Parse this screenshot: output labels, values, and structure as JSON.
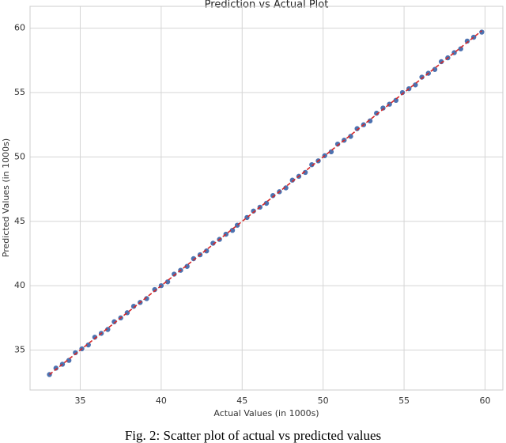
{
  "chart_data": {
    "type": "scatter",
    "title": "Prediction vs Actual Plot",
    "xlabel": "Actual Values (in 1000s)",
    "ylabel": "Predicted Values (in 1000s)",
    "caption": "Fig. 2: Scatter plot of actual vs predicted values",
    "xlim": [
      31.9,
      61.1
    ],
    "ylim": [
      31.9,
      61.7
    ],
    "xticks": [
      35,
      40,
      45,
      50,
      55,
      60
    ],
    "yticks": [
      35,
      40,
      45,
      50,
      55,
      60
    ],
    "grid": true,
    "series": [
      {
        "color": "#4c72b0",
        "x": [
          33.1,
          33.5,
          33.9,
          34.3,
          34.7,
          35.1,
          35.5,
          35.9,
          36.3,
          36.7,
          37.1,
          37.5,
          37.9,
          38.3,
          38.7,
          39.1,
          39.6,
          40.0,
          40.4,
          40.8,
          41.2,
          41.6,
          42.0,
          42.4,
          42.8,
          43.2,
          43.6,
          44.0,
          44.4,
          44.7,
          45.3,
          45.7,
          46.1,
          46.5,
          46.9,
          47.3,
          47.7,
          48.1,
          48.5,
          48.9,
          49.3,
          49.7,
          50.1,
          50.5,
          50.9,
          51.3,
          51.7,
          52.1,
          52.5,
          52.9,
          53.3,
          53.7,
          54.1,
          54.5,
          54.9,
          55.3,
          55.7,
          56.1,
          56.5,
          56.9,
          57.3,
          57.7,
          58.1,
          58.5,
          58.9,
          59.3,
          59.8
        ],
        "values": [
          33.1,
          33.6,
          33.9,
          34.2,
          34.8,
          35.1,
          35.4,
          36.0,
          36.3,
          36.6,
          37.2,
          37.5,
          37.9,
          38.4,
          38.7,
          39.0,
          39.7,
          40.0,
          40.3,
          40.9,
          41.2,
          41.5,
          42.1,
          42.4,
          42.7,
          43.3,
          43.6,
          44.0,
          44.3,
          44.7,
          45.3,
          45.8,
          46.1,
          46.4,
          47.0,
          47.3,
          47.6,
          48.2,
          48.5,
          48.8,
          49.4,
          49.7,
          50.1,
          50.4,
          51.0,
          51.3,
          51.6,
          52.2,
          52.5,
          52.8,
          53.4,
          53.8,
          54.1,
          54.4,
          55.0,
          55.3,
          55.6,
          56.2,
          56.5,
          56.8,
          57.4,
          57.7,
          58.1,
          58.4,
          59.0,
          59.3,
          59.7
        ]
      }
    ],
    "reference_line": {
      "color": "#d62728",
      "x": [
        33.1,
        59.8
      ],
      "values": [
        33.1,
        59.8
      ]
    }
  }
}
